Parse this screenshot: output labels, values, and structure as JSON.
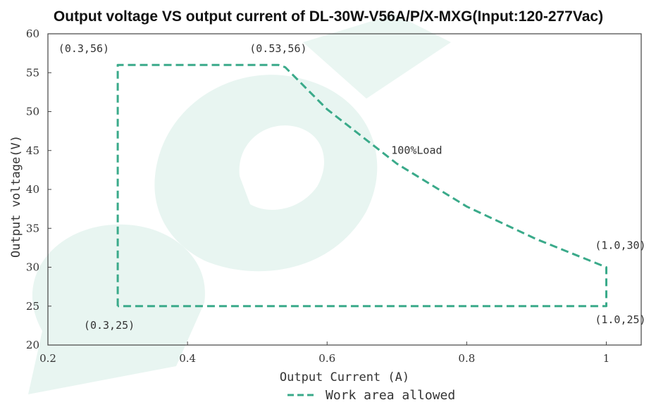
{
  "chart_data": {
    "type": "line",
    "title": "Output voltage VS output current of DL-30W-V56A/P/X-MXG(Input:120-277Vac)",
    "xlabel": "Output Current (A)",
    "ylabel": "Output voltage(V)",
    "xlim": [
      0.2,
      1.05
    ],
    "ylim": [
      20,
      60
    ],
    "x_ticks": [
      0.2,
      0.4,
      0.6,
      0.8,
      1
    ],
    "x_tick_labels": [
      "0.2",
      "0.4",
      "0.6",
      "0.8",
      "1"
    ],
    "y_ticks": [
      20,
      25,
      30,
      35,
      40,
      45,
      50,
      55,
      60
    ],
    "y_tick_labels": [
      "20",
      "25",
      "30",
      "35",
      "40",
      "45",
      "50",
      "55",
      "60"
    ],
    "grid": false,
    "legend_position": "bottom",
    "colors": {
      "series": "#3aaa8a",
      "axis": "#444444",
      "watermark": "#e3f3ee"
    },
    "series": [
      {
        "name": "Work area allowed",
        "style": "dashed",
        "points": [
          [
            0.3,
            25
          ],
          [
            0.3,
            56
          ],
          [
            0.53,
            56
          ],
          [
            0.54,
            55.7
          ],
          [
            0.6,
            50.3
          ],
          [
            0.7,
            43.3
          ],
          [
            0.8,
            37.8
          ],
          [
            0.9,
            33.6
          ],
          [
            1.0,
            30
          ],
          [
            1.0,
            25
          ],
          [
            0.3,
            25
          ]
        ]
      }
    ],
    "annotations": [
      {
        "text": "(0.3,56)",
        "x": 0.3,
        "y": 56
      },
      {
        "text": "(0.53,56)",
        "x": 0.53,
        "y": 56
      },
      {
        "text": "100%Load",
        "x": 0.7,
        "y": 43.3
      },
      {
        "text": "(1.0,30)",
        "x": 1.0,
        "y": 30
      },
      {
        "text": "(1.0,25)",
        "x": 1.0,
        "y": 25
      },
      {
        "text": "(0.3,25)",
        "x": 0.3,
        "y": 25
      }
    ]
  }
}
